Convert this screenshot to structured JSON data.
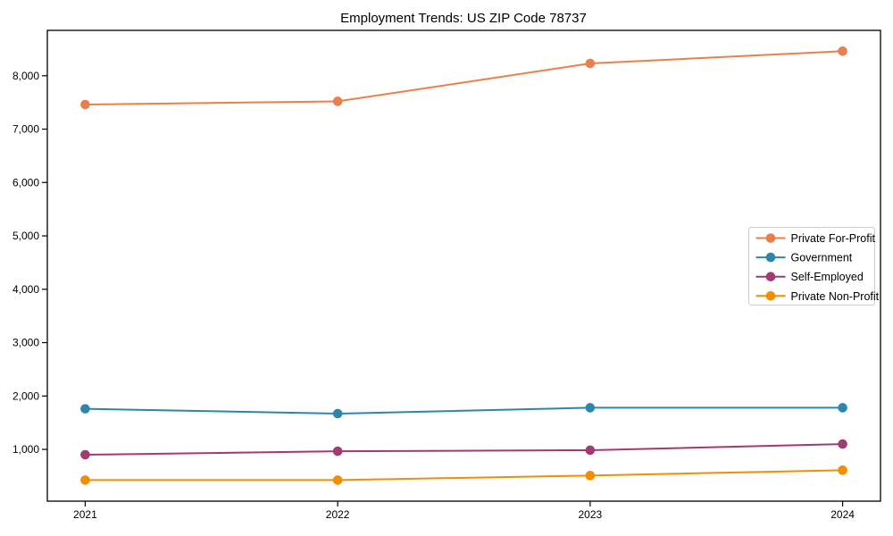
{
  "chart_data": {
    "type": "line",
    "title": "Employment Trends: US ZIP Code 78737",
    "xlabel": "",
    "ylabel": "",
    "x": [
      2021,
      2022,
      2023,
      2024
    ],
    "x_tick_labels": [
      "2021",
      "2022",
      "2023",
      "2024"
    ],
    "series": [
      {
        "name": "Private For-Profit",
        "color": "#E8804D",
        "values": [
          7460,
          7520,
          8230,
          8460
        ]
      },
      {
        "name": "Government",
        "color": "#2E86AB",
        "values": [
          1760,
          1670,
          1780,
          1780
        ]
      },
      {
        "name": "Self-Employed",
        "color": "#A23B72",
        "values": [
          900,
          965,
          985,
          1100
        ]
      },
      {
        "name": "Private Non-Profit",
        "color": "#F18F01",
        "values": [
          425,
          425,
          510,
          610
        ]
      }
    ],
    "ylim": [
      30,
      8850
    ],
    "xlim": [
      2020.85,
      2024.15
    ],
    "yticks": [
      1000,
      2000,
      3000,
      4000,
      5000,
      6000,
      7000,
      8000
    ],
    "ytick_labels": [
      "1,000",
      "2,000",
      "3,000",
      "4,000",
      "5,000",
      "6,000",
      "7,000",
      "8,000"
    ],
    "grid": false,
    "marker": "circle",
    "legend": {
      "position": "center-right"
    },
    "colors": {
      "background": "#ffffff",
      "axis": "#000000",
      "legend_border": "#cccccc",
      "legend_background": "#ffffff"
    }
  }
}
